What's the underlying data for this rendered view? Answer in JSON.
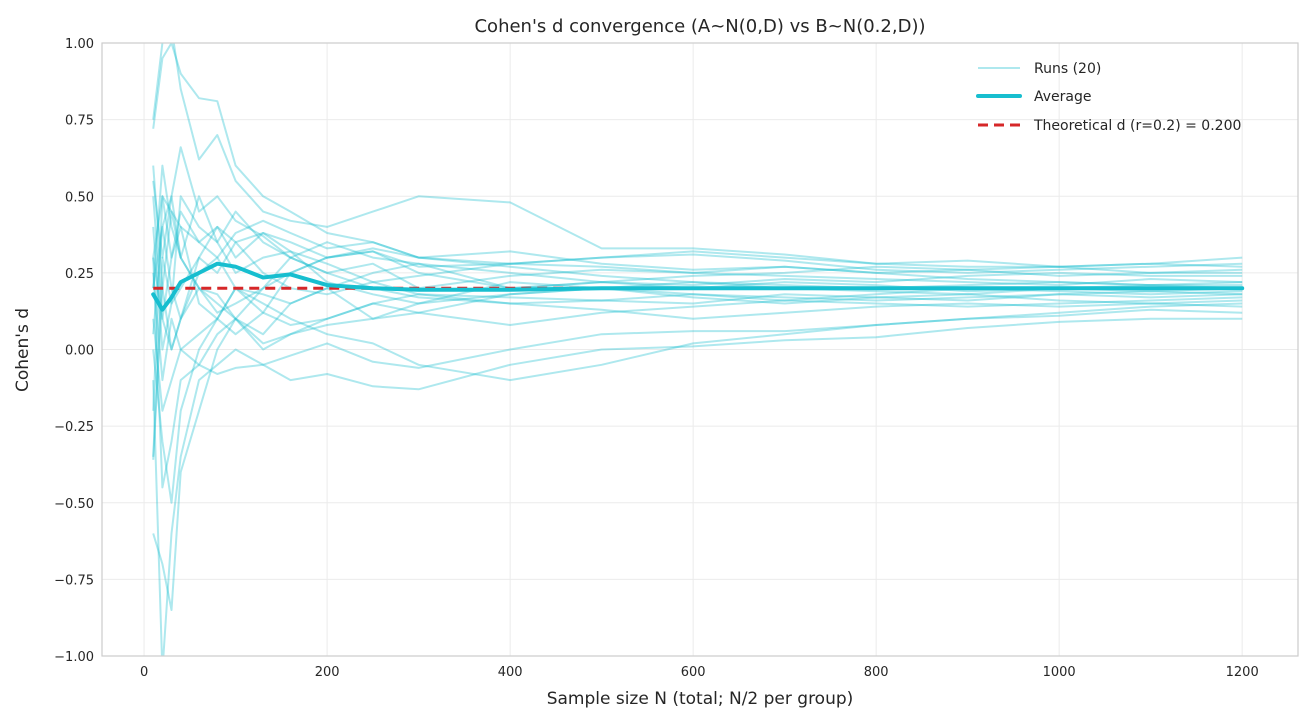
{
  "chart_data": {
    "type": "line",
    "title": "Cohen's d convergence (A~N(0,D) vs B~N(0.2,D))",
    "xlabel": "Sample size N (total; N/2 per group)",
    "ylabel": "Cohen's d",
    "xlim": [
      -46,
      1261
    ],
    "ylim": [
      -1.0,
      1.0
    ],
    "xticks": [
      0,
      200,
      400,
      600,
      800,
      1000,
      1200
    ],
    "xtick_labels": [
      "0",
      "200",
      "400",
      "600",
      "800",
      "1000",
      "1200"
    ],
    "yticks": [
      -1.0,
      -0.75,
      -0.5,
      -0.25,
      0.0,
      0.25,
      0.5,
      0.75,
      1.0
    ],
    "ytick_labels": [
      "−1.00",
      "−0.75",
      "−0.50",
      "−0.25",
      "0.00",
      "0.25",
      "0.50",
      "0.75",
      "1.00"
    ],
    "grid": true,
    "legend_position": "top-right",
    "colors": {
      "runs": "#17becf",
      "average": "#17becf",
      "theoretical": "#d62728"
    },
    "legend": [
      "Runs (20)",
      "Average",
      "Theoretical d (r=0.2) = 0.200"
    ],
    "x": [
      10,
      20,
      30,
      40,
      60,
      80,
      100,
      130,
      160,
      200,
      250,
      300,
      400,
      500,
      600,
      700,
      800,
      900,
      1000,
      1100,
      1200
    ],
    "runs": [
      [
        0.75,
        1.0,
        1.05,
        0.85,
        0.62,
        0.7,
        0.55,
        0.45,
        0.42,
        0.4,
        0.45,
        0.5,
        0.48,
        0.33,
        0.33,
        0.31,
        0.28,
        0.27,
        0.27,
        0.28,
        0.3
      ],
      [
        0.72,
        0.95,
        1.0,
        0.9,
        0.82,
        0.81,
        0.6,
        0.5,
        0.45,
        0.38,
        0.35,
        0.3,
        0.28,
        0.3,
        0.31,
        0.29,
        0.26,
        0.25,
        0.26,
        0.27,
        0.28
      ],
      [
        0.55,
        0.3,
        0.5,
        0.66,
        0.45,
        0.5,
        0.42,
        0.37,
        0.3,
        0.35,
        0.3,
        0.28,
        0.2,
        0.22,
        0.24,
        0.25,
        0.27,
        0.26,
        0.27,
        0.25,
        0.26
      ],
      [
        -0.36,
        0.2,
        0.45,
        0.3,
        0.5,
        0.35,
        0.25,
        0.3,
        0.32,
        0.22,
        0.18,
        0.15,
        0.18,
        0.2,
        0.22,
        0.2,
        0.19,
        0.18,
        0.2,
        0.19,
        0.2
      ],
      [
        -0.6,
        -0.7,
        -0.85,
        -0.4,
        -0.2,
        0.0,
        0.1,
        0.05,
        0.15,
        0.2,
        0.1,
        0.12,
        0.18,
        0.2,
        0.17,
        0.15,
        0.17,
        0.18,
        0.16,
        0.15,
        0.14
      ],
      [
        0.3,
        -0.45,
        -0.3,
        -0.1,
        -0.05,
        -0.08,
        -0.06,
        -0.05,
        -0.1,
        -0.08,
        -0.12,
        -0.13,
        -0.05,
        0.0,
        0.01,
        0.03,
        0.04,
        0.07,
        0.09,
        0.1,
        0.1
      ],
      [
        -0.1,
        -1.05,
        -0.6,
        -0.35,
        -0.1,
        -0.05,
        0.0,
        -0.05,
        -0.02,
        0.02,
        -0.04,
        -0.06,
        0.0,
        0.05,
        0.06,
        0.06,
        0.08,
        0.1,
        0.11,
        0.13,
        0.12
      ],
      [
        0.05,
        0.4,
        0.2,
        0.1,
        0.25,
        0.3,
        0.2,
        0.15,
        0.1,
        0.05,
        0.02,
        -0.05,
        -0.1,
        -0.05,
        0.02,
        0.05,
        0.08,
        0.1,
        0.12,
        0.14,
        0.15
      ],
      [
        0.5,
        0.1,
        0.3,
        0.45,
        0.35,
        0.4,
        0.3,
        0.38,
        0.35,
        0.3,
        0.32,
        0.27,
        0.28,
        0.27,
        0.25,
        0.27,
        0.25,
        0.23,
        0.22,
        0.21,
        0.22
      ],
      [
        0.2,
        0.6,
        0.4,
        0.3,
        0.2,
        0.12,
        0.15,
        0.2,
        0.25,
        0.3,
        0.32,
        0.25,
        0.2,
        0.22,
        0.21,
        0.23,
        0.22,
        0.24,
        0.25,
        0.24,
        0.24
      ],
      [
        0.3,
        0.1,
        0.0,
        0.1,
        0.3,
        0.25,
        0.35,
        0.25,
        0.2,
        0.18,
        0.22,
        0.18,
        0.15,
        0.16,
        0.15,
        0.18,
        0.17,
        0.16,
        0.18,
        0.17,
        0.18
      ],
      [
        -0.2,
        0.5,
        0.3,
        0.4,
        0.15,
        0.1,
        0.2,
        0.18,
        0.15,
        0.2,
        0.25,
        0.28,
        0.25,
        0.22,
        0.2,
        0.22,
        0.21,
        0.19,
        0.2,
        0.21,
        0.21
      ],
      [
        0.1,
        -0.2,
        -0.1,
        0.0,
        0.05,
        0.1,
        0.05,
        0.12,
        0.08,
        0.1,
        0.15,
        0.12,
        0.08,
        0.12,
        0.14,
        0.16,
        0.15,
        0.14,
        0.15,
        0.16,
        0.17
      ],
      [
        0.4,
        0.0,
        0.15,
        0.5,
        0.4,
        0.35,
        0.45,
        0.35,
        0.3,
        0.25,
        0.28,
        0.2,
        0.24,
        0.26,
        0.25,
        0.24,
        0.23,
        0.22,
        0.21,
        0.23,
        0.22
      ],
      [
        -0.35,
        0.3,
        0.15,
        0.2,
        0.3,
        0.4,
        0.35,
        0.38,
        0.32,
        0.28,
        0.22,
        0.24,
        0.28,
        0.3,
        0.32,
        0.3,
        0.28,
        0.29,
        0.27,
        0.28,
        0.27
      ],
      [
        0.2,
        0.4,
        0.5,
        0.3,
        0.2,
        0.18,
        0.1,
        0.0,
        0.05,
        0.08,
        0.1,
        0.15,
        0.22,
        0.2,
        0.18,
        0.16,
        0.18,
        0.2,
        0.19,
        0.18,
        0.19
      ],
      [
        0.0,
        -0.3,
        -0.5,
        -0.2,
        0.0,
        0.1,
        0.2,
        0.12,
        0.25,
        0.3,
        0.33,
        0.3,
        0.27,
        0.24,
        0.22,
        0.21,
        0.2,
        0.21,
        0.22,
        0.21,
        0.2
      ],
      [
        0.6,
        0.2,
        0.0,
        0.1,
        0.2,
        0.15,
        0.1,
        0.2,
        0.3,
        0.25,
        0.2,
        0.17,
        0.15,
        0.13,
        0.1,
        0.12,
        0.14,
        0.15,
        0.14,
        0.15,
        0.16
      ],
      [
        0.3,
        0.5,
        0.45,
        0.4,
        0.35,
        0.3,
        0.38,
        0.42,
        0.38,
        0.33,
        0.35,
        0.3,
        0.32,
        0.28,
        0.26,
        0.27,
        0.25,
        0.26,
        0.24,
        0.25,
        0.25
      ],
      [
        0.25,
        -0.1,
        0.1,
        0.0,
        -0.05,
        0.05,
        0.1,
        0.02,
        0.05,
        0.1,
        0.15,
        0.18,
        0.17,
        0.16,
        0.18,
        0.17,
        0.16,
        0.17,
        0.18,
        0.19,
        0.18
      ]
    ],
    "average": [
      0.18,
      0.13,
      0.17,
      0.22,
      0.25,
      0.28,
      0.27,
      0.235,
      0.245,
      0.21,
      0.2,
      0.195,
      0.195,
      0.2,
      0.2,
      0.2,
      0.2,
      0.2,
      0.2,
      0.2,
      0.2
    ],
    "theoretical_d": 0.2
  }
}
